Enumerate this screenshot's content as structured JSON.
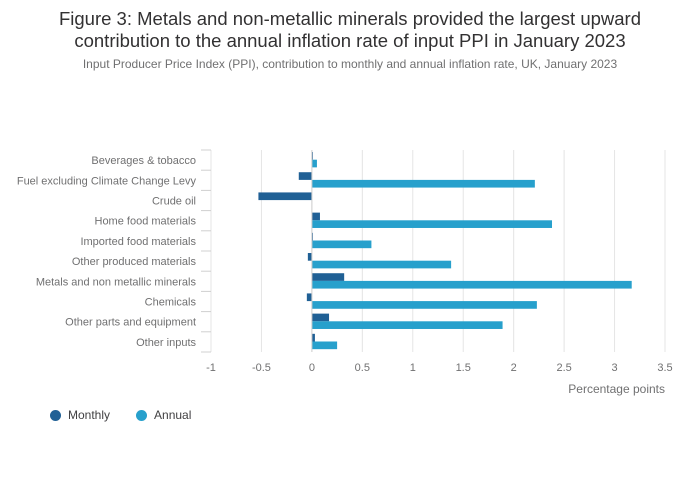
{
  "title_line1": "Figure 3: Metals and non-metallic minerals provided the largest upward",
  "title_line2": "contribution to the annual inflation rate of input PPI in January 2023",
  "subtitle": "Input Producer Price Index (PPI), contribution to monthly and annual inflation rate, UK, January 2023",
  "colors": {
    "monthly": "#206095",
    "annual": "#27a0cc",
    "grid": "#e4e4e4",
    "axis_text": "#707071",
    "label_text": "#414042"
  },
  "chart_data": {
    "type": "bar",
    "orientation": "horizontal",
    "categories": [
      "Beverages & tobacco",
      "Fuel excluding Climate Change Levy",
      "Crude oil",
      "Home food materials",
      "Imported food materials",
      "Other produced materials",
      "Metals and non metallic minerals",
      "Chemicals",
      "Other parts and equipment",
      "Other inputs"
    ],
    "series": [
      {
        "name": "Monthly",
        "values": [
          0.01,
          -0.13,
          -0.53,
          0.08,
          0.01,
          -0.04,
          0.32,
          -0.05,
          0.17,
          0.03
        ]
      },
      {
        "name": "Annual",
        "values": [
          0.05,
          2.21,
          0.0,
          2.38,
          0.59,
          1.38,
          3.17,
          2.23,
          1.89,
          0.25
        ]
      }
    ],
    "xlim": [
      -1,
      3.5
    ],
    "xticks": [
      -1,
      -0.5,
      0,
      0.5,
      1,
      1.5,
      2,
      2.5,
      3,
      3.5
    ],
    "xtick_labels": [
      "-1",
      "-0.5",
      "0",
      "0.5",
      "1",
      "1.5",
      "2",
      "2.5",
      "3",
      "3.5"
    ],
    "xlabel": "Percentage points",
    "legend_position": "bottom-left"
  }
}
